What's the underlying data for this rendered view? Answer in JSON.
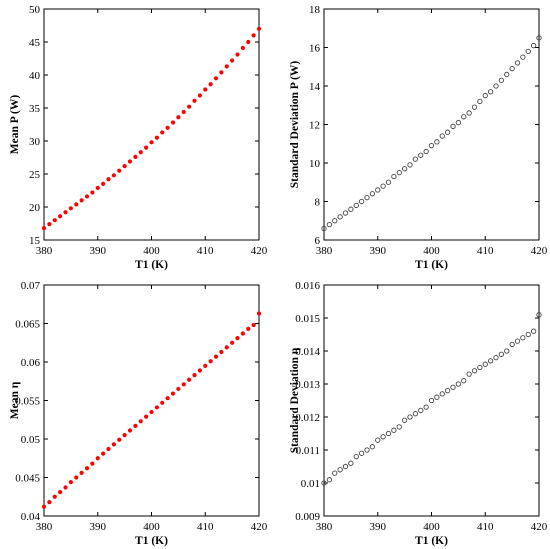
{
  "chart_data": [
    {
      "type": "scatter",
      "title": "",
      "xlabel": "T1 (K)",
      "ylabel": "Mean P (W)",
      "xlim": [
        380,
        420
      ],
      "ylim": [
        15,
        50
      ],
      "xticks": [
        380,
        390,
        400,
        410,
        420
      ],
      "yticks": [
        15,
        20,
        25,
        30,
        35,
        40,
        45,
        50
      ],
      "marker": "filled-dot",
      "color": "#ff0000",
      "x_start": 380,
      "x_end": 420,
      "x_step": 1,
      "series": [
        {
          "y": [
            16.8,
            17.4,
            18.0,
            18.6,
            19.2,
            19.8,
            20.4,
            21.0,
            21.6,
            22.2,
            22.9,
            23.5,
            24.2,
            24.8,
            25.5,
            26.2,
            26.9,
            27.6,
            28.3,
            29.0,
            29.8,
            30.5,
            31.3,
            32.0,
            32.8,
            33.6,
            34.4,
            35.2,
            36.1,
            36.9,
            37.8,
            38.6,
            39.5,
            40.4,
            41.3,
            42.2,
            43.1,
            44.1,
            45.0,
            46.0,
            47.0
          ]
        }
      ]
    },
    {
      "type": "scatter",
      "title": "",
      "xlabel": "T1 (K)",
      "ylabel": "Standard Deviation P (W)",
      "xlim": [
        380,
        420
      ],
      "ylim": [
        6,
        18
      ],
      "xticks": [
        380,
        390,
        400,
        410,
        420
      ],
      "yticks": [
        6,
        8,
        10,
        12,
        14,
        16,
        18
      ],
      "marker": "open-circle",
      "color": "#444444",
      "x_start": 380,
      "x_end": 420,
      "x_step": 1,
      "series": [
        {
          "y": [
            6.6,
            6.8,
            7.0,
            7.2,
            7.4,
            7.6,
            7.8,
            8.0,
            8.2,
            8.4,
            8.6,
            8.8,
            9.0,
            9.3,
            9.5,
            9.7,
            9.9,
            10.2,
            10.4,
            10.6,
            10.9,
            11.1,
            11.4,
            11.6,
            11.9,
            12.1,
            12.4,
            12.6,
            12.9,
            13.2,
            13.5,
            13.7,
            14.0,
            14.3,
            14.6,
            14.9,
            15.2,
            15.5,
            15.8,
            16.1,
            16.5
          ]
        }
      ]
    },
    {
      "type": "scatter",
      "title": "",
      "xlabel": "T1 (K)",
      "ylabel": "Mean η",
      "xlim": [
        380,
        420
      ],
      "ylim": [
        0.04,
        0.07
      ],
      "xticks": [
        380,
        390,
        400,
        410,
        420
      ],
      "yticks": [
        0.04,
        0.045,
        0.05,
        0.055,
        0.06,
        0.065,
        0.07
      ],
      "marker": "filled-dot",
      "color": "#ff0000",
      "x_start": 380,
      "x_end": 420,
      "x_step": 1,
      "series": [
        {
          "y": [
            0.0412,
            0.0418,
            0.0425,
            0.0431,
            0.0437,
            0.0444,
            0.045,
            0.0456,
            0.0462,
            0.0468,
            0.0475,
            0.0481,
            0.0487,
            0.0493,
            0.0499,
            0.0505,
            0.0511,
            0.0517,
            0.0523,
            0.0529,
            0.0535,
            0.0541,
            0.0547,
            0.0553,
            0.0559,
            0.0565,
            0.0571,
            0.0577,
            0.0583,
            0.0589,
            0.0595,
            0.0601,
            0.0607,
            0.0613,
            0.0619,
            0.0625,
            0.0631,
            0.0637,
            0.0643,
            0.0648,
            0.0663
          ]
        }
      ]
    },
    {
      "type": "scatter",
      "title": "",
      "xlabel": "T1 (K)",
      "ylabel": "Standard Deviation η",
      "xlim": [
        380,
        420
      ],
      "ylim": [
        0.009,
        0.016
      ],
      "xticks": [
        380,
        390,
        400,
        410,
        420
      ],
      "yticks": [
        0.009,
        0.01,
        0.011,
        0.012,
        0.013,
        0.014,
        0.015,
        0.016
      ],
      "marker": "open-circle",
      "color": "#444444",
      "x_start": 380,
      "x_end": 420,
      "x_step": 1,
      "series": [
        {
          "y": [
            0.01,
            0.0101,
            0.0103,
            0.0104,
            0.0105,
            0.0106,
            0.0108,
            0.0109,
            0.011,
            0.0111,
            0.0113,
            0.0114,
            0.0115,
            0.0116,
            0.0117,
            0.0119,
            0.012,
            0.0121,
            0.0122,
            0.0123,
            0.0125,
            0.0126,
            0.0127,
            0.0128,
            0.0129,
            0.013,
            0.0131,
            0.0133,
            0.0134,
            0.0135,
            0.0136,
            0.0137,
            0.0138,
            0.0139,
            0.014,
            0.0142,
            0.0143,
            0.0144,
            0.0145,
            0.0146,
            0.0151
          ]
        }
      ]
    }
  ]
}
